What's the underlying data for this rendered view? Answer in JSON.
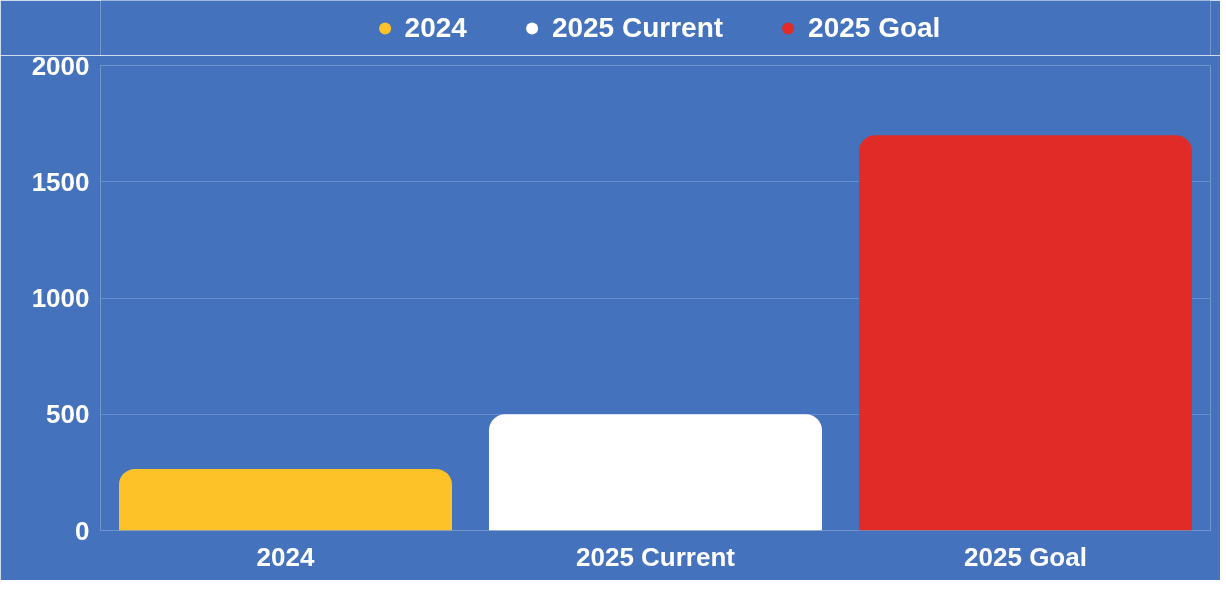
{
  "chart_data": {
    "type": "bar",
    "categories": [
      "2024",
      "2025 Current",
      "2025 Goal"
    ],
    "series": [
      {
        "name": "2024",
        "color": "#fdc228",
        "values": [
          265,
          null,
          null
        ]
      },
      {
        "name": "2025 Current",
        "color": "#ffffff",
        "values": [
          null,
          500,
          null
        ]
      },
      {
        "name": "2025 Goal",
        "color": "#e12b27",
        "values": [
          null,
          null,
          1700
        ]
      }
    ],
    "ylim": [
      0,
      2000
    ],
    "yticks": [
      0,
      500,
      1000,
      1500,
      2000
    ],
    "grid": "y",
    "legend": "top"
  }
}
